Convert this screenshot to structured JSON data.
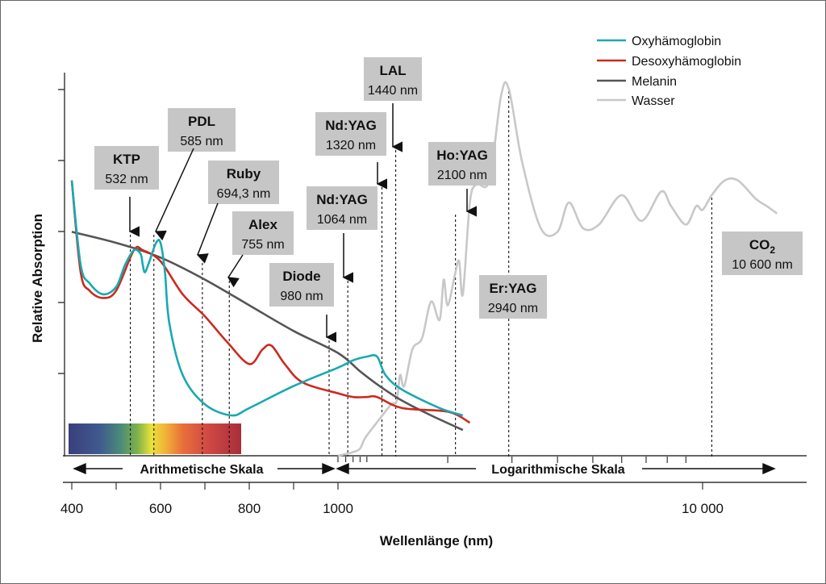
{
  "chart_data": {
    "type": "line",
    "xlabel": "Wellenlänge (nm)",
    "ylabel": "Relative Absorption",
    "x_ticks": [
      "400",
      "600",
      "800",
      "1000",
      "10 000"
    ],
    "x_scale": "linear 400–1000 nm, logarithmic above 1000 nm",
    "scale_labels": {
      "arithmetic": "Arithmetische Skala",
      "logarithmic": "Logarithmische Skala"
    },
    "legend_position": "top-right",
    "series": [
      {
        "name": "Oxyhämoglobin",
        "color": "#19a9b2",
        "points": [
          [
            400,
            0.75
          ],
          [
            420,
            0.52
          ],
          [
            440,
            0.47
          ],
          [
            470,
            0.44
          ],
          [
            500,
            0.46
          ],
          [
            520,
            0.52
          ],
          [
            540,
            0.56
          ],
          [
            555,
            0.55
          ],
          [
            560,
            0.52
          ],
          [
            565,
            0.5
          ],
          [
            575,
            0.53
          ],
          [
            590,
            0.58
          ],
          [
            600,
            0.58
          ],
          [
            610,
            0.5
          ],
          [
            620,
            0.36
          ],
          [
            650,
            0.22
          ],
          [
            700,
            0.14
          ],
          [
            760,
            0.11
          ],
          [
            800,
            0.13
          ],
          [
            900,
            0.19
          ],
          [
            1000,
            0.24
          ],
          [
            1100,
            0.26
          ],
          [
            1200,
            0.27
          ],
          [
            1280,
            0.27
          ],
          [
            1350,
            0.22
          ],
          [
            1500,
            0.18
          ],
          [
            1900,
            0.13
          ],
          [
            2200,
            0.11
          ]
        ]
      },
      {
        "name": "Desoxyhämoglobin",
        "color": "#cc2a1e",
        "points": [
          [
            400,
            0.75
          ],
          [
            420,
            0.5
          ],
          [
            440,
            0.45
          ],
          [
            470,
            0.43
          ],
          [
            500,
            0.45
          ],
          [
            540,
            0.56
          ],
          [
            560,
            0.56
          ],
          [
            600,
            0.53
          ],
          [
            650,
            0.44
          ],
          [
            700,
            0.38
          ],
          [
            750,
            0.31
          ],
          [
            800,
            0.25
          ],
          [
            830,
            0.29
          ],
          [
            850,
            0.3
          ],
          [
            880,
            0.25
          ],
          [
            920,
            0.2
          ],
          [
            1000,
            0.17
          ],
          [
            1100,
            0.16
          ],
          [
            1200,
            0.16
          ],
          [
            1280,
            0.16
          ],
          [
            1500,
            0.13
          ],
          [
            2000,
            0.12
          ],
          [
            2300,
            0.09
          ]
        ]
      },
      {
        "name": "Melanin",
        "color": "#555555",
        "points": [
          [
            400,
            0.61
          ],
          [
            500,
            0.58
          ],
          [
            600,
            0.54
          ],
          [
            700,
            0.48
          ],
          [
            800,
            0.41
          ],
          [
            900,
            0.34
          ],
          [
            1000,
            0.28
          ],
          [
            1150,
            0.23
          ],
          [
            1300,
            0.19
          ],
          [
            1500,
            0.15
          ],
          [
            1800,
            0.11
          ],
          [
            2200,
            0.07
          ]
        ]
      },
      {
        "name": "Wasser",
        "color": "#c8c8c8",
        "points": [
          [
            1000,
            0.0
          ],
          [
            1100,
            0.01
          ],
          [
            1150,
            0.02
          ],
          [
            1190,
            0.05
          ],
          [
            1300,
            0.1
          ],
          [
            1400,
            0.14
          ],
          [
            1450,
            0.15
          ],
          [
            1480,
            0.22
          ],
          [
            1520,
            0.19
          ],
          [
            1600,
            0.29
          ],
          [
            1700,
            0.32
          ],
          [
            1800,
            0.42
          ],
          [
            1900,
            0.37
          ],
          [
            1950,
            0.48
          ],
          [
            2000,
            0.41
          ],
          [
            2100,
            0.5
          ],
          [
            2150,
            0.53
          ],
          [
            2200,
            0.44
          ],
          [
            2300,
            0.69
          ],
          [
            2400,
            0.74
          ],
          [
            2600,
            0.75
          ],
          [
            2800,
            0.98
          ],
          [
            2940,
            1.0
          ],
          [
            3200,
            0.8
          ],
          [
            3600,
            0.62
          ],
          [
            4000,
            0.61
          ],
          [
            4300,
            0.69
          ],
          [
            4700,
            0.62
          ],
          [
            5200,
            0.63
          ],
          [
            6000,
            0.71
          ],
          [
            6800,
            0.64
          ],
          [
            7700,
            0.72
          ],
          [
            8200,
            0.68
          ],
          [
            9000,
            0.63
          ],
          [
            9600,
            0.68
          ],
          [
            10000,
            0.67
          ],
          [
            10600,
            0.71
          ],
          [
            11500,
            0.75
          ],
          [
            12500,
            0.75
          ],
          [
            14000,
            0.7
          ],
          [
            15000,
            0.68
          ],
          [
            16000,
            0.66
          ]
        ]
      }
    ],
    "lasers": [
      {
        "name": "KTP",
        "wavelength": "532 nm",
        "x": 532
      },
      {
        "name": "PDL",
        "wavelength": "585 nm",
        "x": 585
      },
      {
        "name": "Ruby",
        "wavelength": "694,3 nm",
        "x": 694.3
      },
      {
        "name": "Alex",
        "wavelength": "755 nm",
        "x": 755
      },
      {
        "name": "Diode",
        "wavelength": "980 nm",
        "x": 980
      },
      {
        "name": "Nd:YAG",
        "wavelength": "1064 nm",
        "x": 1064
      },
      {
        "name": "Nd:YAG",
        "wavelength": "1320 nm",
        "x": 1320
      },
      {
        "name": "LAL",
        "wavelength": "1440 nm",
        "x": 1440
      },
      {
        "name": "Ho:YAG",
        "wavelength": "2100 nm",
        "x": 2100
      },
      {
        "name": "Er:YAG",
        "wavelength": "2940 nm",
        "x": 2940
      },
      {
        "name": "CO2",
        "wavelength": "10 600 nm",
        "x": 10600
      }
    ]
  }
}
